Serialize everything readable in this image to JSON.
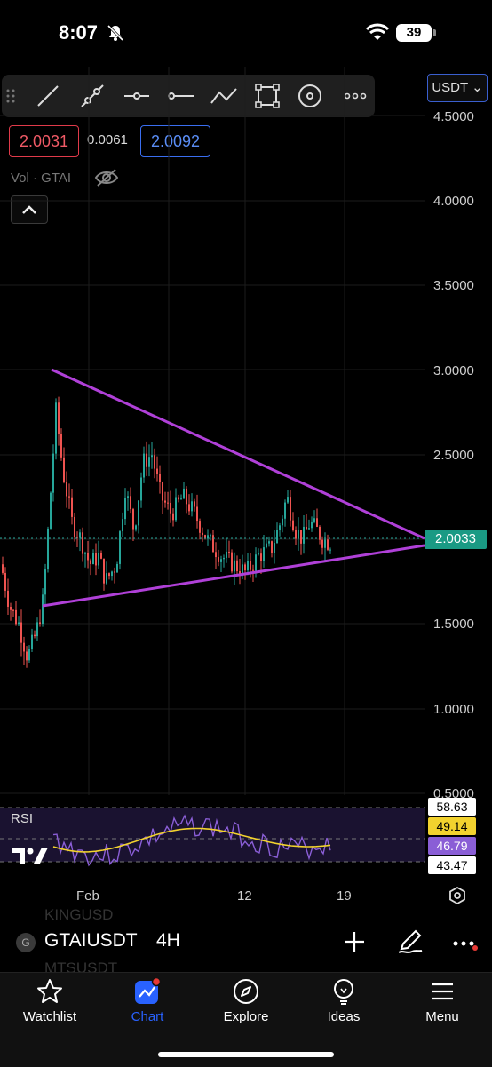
{
  "status": {
    "time": "8:07",
    "battery": "39"
  },
  "toolbar": {
    "tools": [
      "trend-line-icon",
      "ray-icon",
      "horizontal-ray-icon",
      "horizontal-line-icon",
      "path-icon",
      "rectangle-icon",
      "circle-icon",
      "more-icon"
    ],
    "currency": "USDT"
  },
  "prices": {
    "sell": "2.0031",
    "spread": "0.0061",
    "buy": "2.0092"
  },
  "volume_label": "Vol · GTAI",
  "price_axis": [
    "4.5000",
    "4.0000",
    "3.5000",
    "3.0000",
    "2.5000",
    "1.5000",
    "1.0000",
    "0.5000"
  ],
  "last_price": "2.0033",
  "rsi": {
    "label": "RSI",
    "upper": "58.63",
    "ma": "49.14",
    "value": "46.79",
    "lower": "43.47"
  },
  "time_axis": [
    "Feb",
    "12",
    "19"
  ],
  "symbol": {
    "badge": "G",
    "name": "GTAIUSDT",
    "interval": "4H",
    "ghost_above": "KINGUSD",
    "ghost_below": "MTSUSDT"
  },
  "nav": [
    {
      "label": "Watchlist",
      "icon": "star-icon"
    },
    {
      "label": "Chart",
      "icon": "chart-icon"
    },
    {
      "label": "Explore",
      "icon": "compass-icon"
    },
    {
      "label": "Ideas",
      "icon": "lightbulb-icon"
    },
    {
      "label": "Menu",
      "icon": "menu-icon"
    }
  ],
  "colors": {
    "up": "#26a69a",
    "down": "#ef5350",
    "pattern": "#b040d8",
    "rsi_line": "#8a5ed6",
    "rsi_ma": "#f2d22e",
    "accent": "#2962ff"
  }
}
